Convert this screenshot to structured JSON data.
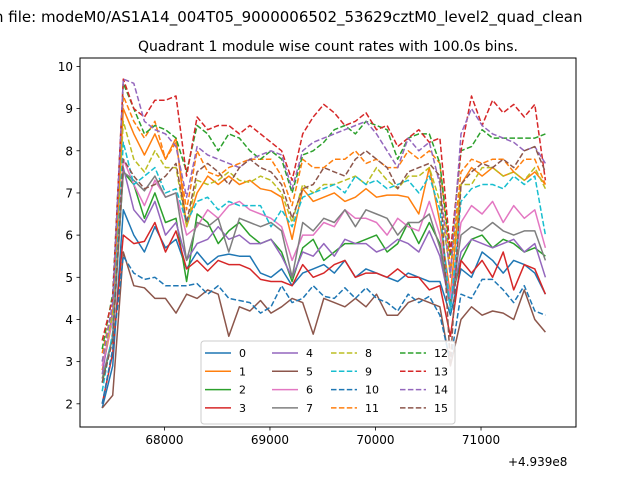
{
  "figure": {
    "suptitle": "n file: modeM0/AS1A14_004T05_9000006502_53629cztM0_level2_quad_clean",
    "x_offset_label": "+4.939e8"
  },
  "chart_data": {
    "type": "line",
    "title": "Quadrant 1 module wise count rates with 100.0s bins.",
    "xlabel": "",
    "ylabel": "",
    "xlim": [
      67200,
      71900
    ],
    "ylim": [
      1.45,
      10.2
    ],
    "x_ticks": [
      68000,
      69000,
      70000,
      71000
    ],
    "x_tick_labels": [
      "68000",
      "69000",
      "70000",
      "71000"
    ],
    "y_ticks": [
      2,
      3,
      4,
      5,
      6,
      7,
      8,
      9,
      10
    ],
    "y_tick_labels": [
      "2",
      "3",
      "4",
      "5",
      "6",
      "7",
      "8",
      "9",
      "10"
    ],
    "grid": false,
    "legend": {
      "placement": "lower center",
      "columns": 4
    },
    "x": [
      67410,
      67510,
      67610,
      67710,
      67810,
      67910,
      68010,
      68110,
      68210,
      68310,
      68410,
      68510,
      68610,
      68710,
      68810,
      68910,
      69010,
      69110,
      69210,
      69310,
      69410,
      69510,
      69610,
      69710,
      69810,
      69910,
      70010,
      70110,
      70210,
      70310,
      70410,
      70510,
      70610,
      70710,
      70810,
      70910,
      71010,
      71110,
      71210,
      71310,
      71410,
      71510,
      71610
    ],
    "series": [
      {
        "name": "0",
        "color": "#1f77b4",
        "dash": "solid",
        "values": [
          1.9,
          2.9,
          6.6,
          6.0,
          5.6,
          6.2,
          5.7,
          5.9,
          5.2,
          5.6,
          5.3,
          5.5,
          5.55,
          5.5,
          5.5,
          5.1,
          5.0,
          5.2,
          4.8,
          5.1,
          5.2,
          5.3,
          5.1,
          5.4,
          5.0,
          5.2,
          5.1,
          5.0,
          4.9,
          5.1,
          5.0,
          4.9,
          4.9,
          4.1,
          5.2,
          5.0,
          5.6,
          5.4,
          5.1,
          5.4,
          5.3,
          5.1,
          4.6
        ]
      },
      {
        "name": "1",
        "color": "#ff7f0e",
        "dash": "solid",
        "values": [
          2.8,
          4.0,
          9.0,
          8.4,
          7.9,
          8.4,
          7.8,
          8.3,
          6.2,
          7.0,
          7.4,
          7.2,
          7.4,
          7.2,
          7.3,
          7.1,
          7.05,
          6.9,
          5.9,
          7.1,
          6.8,
          6.9,
          7.0,
          6.8,
          6.9,
          7.1,
          6.9,
          6.95,
          6.95,
          6.9,
          6.5,
          7.6,
          6.3,
          4.6,
          7.2,
          7.6,
          7.4,
          7.6,
          7.4,
          7.5,
          7.3,
          7.5,
          7.2
        ]
      },
      {
        "name": "2",
        "color": "#2ca02c",
        "dash": "solid",
        "values": [
          2.5,
          3.6,
          7.5,
          7.2,
          6.4,
          7.0,
          6.3,
          6.4,
          4.9,
          6.5,
          6.3,
          5.8,
          6.1,
          6.3,
          6.0,
          5.8,
          5.9,
          5.6,
          4.9,
          5.7,
          5.9,
          5.4,
          5.6,
          5.8,
          5.8,
          5.9,
          6.0,
          5.6,
          5.8,
          6.3,
          5.8,
          6.3,
          5.8,
          4.4,
          5.4,
          5.9,
          6.0,
          5.7,
          5.9,
          5.8,
          5.6,
          5.7,
          5.5
        ]
      },
      {
        "name": "3",
        "color": "#d62728",
        "dash": "solid",
        "values": [
          2.0,
          3.2,
          6.0,
          5.8,
          5.85,
          6.3,
          5.6,
          6.1,
          5.2,
          5.4,
          5.15,
          5.4,
          5.3,
          5.3,
          5.2,
          4.95,
          4.9,
          4.9,
          4.8,
          5.3,
          5.0,
          5.1,
          5.3,
          5.4,
          5.0,
          5.1,
          5.1,
          5.0,
          5.2,
          5.0,
          5.0,
          4.7,
          4.8,
          3.6,
          5.4,
          5.1,
          5.4,
          5.0,
          5.6,
          4.7,
          5.3,
          5.2,
          4.6
        ]
      },
      {
        "name": "4",
        "color": "#9467bd",
        "dash": "solid",
        "values": [
          2.7,
          4.2,
          7.6,
          6.6,
          6.3,
          6.8,
          6.0,
          6.3,
          5.4,
          5.8,
          5.9,
          6.2,
          5.9,
          6.0,
          5.8,
          5.8,
          5.9,
          5.5,
          5.0,
          5.6,
          5.5,
          5.8,
          5.5,
          5.9,
          5.8,
          5.8,
          5.6,
          5.7,
          5.9,
          5.8,
          5.6,
          6.1,
          5.5,
          4.3,
          5.6,
          5.9,
          5.8,
          5.7,
          5.8,
          5.9,
          5.6,
          5.8,
          5.0
        ]
      },
      {
        "name": "5",
        "color": "#8c564b",
        "dash": "solid",
        "values": [
          1.9,
          2.2,
          5.6,
          4.8,
          4.75,
          4.5,
          4.5,
          4.15,
          4.6,
          4.5,
          4.7,
          4.6,
          3.6,
          4.3,
          4.2,
          4.45,
          4.15,
          4.3,
          4.5,
          4.4,
          3.65,
          4.5,
          4.4,
          4.3,
          4.5,
          4.3,
          4.6,
          4.1,
          4.1,
          4.4,
          4.5,
          4.4,
          4.3,
          2.9,
          4.0,
          4.3,
          4.1,
          4.2,
          4.15,
          4.0,
          4.7,
          4.0,
          3.7
        ]
      },
      {
        "name": "6",
        "color": "#e377c2",
        "dash": "solid",
        "values": [
          2.9,
          4.0,
          7.8,
          7.2,
          6.7,
          7.3,
          6.9,
          7.0,
          6.0,
          6.2,
          6.6,
          6.4,
          6.7,
          6.8,
          6.6,
          6.5,
          6.4,
          6.2,
          5.4,
          6.0,
          6.0,
          6.3,
          6.2,
          6.6,
          6.4,
          6.4,
          6.3,
          6.0,
          6.4,
          6.2,
          6.1,
          6.8,
          6.0,
          4.5,
          6.3,
          6.7,
          6.5,
          6.8,
          6.3,
          6.7,
          6.4,
          6.6,
          5.7
        ]
      },
      {
        "name": "7",
        "color": "#7f7f7f",
        "dash": "solid",
        "values": [
          2.6,
          3.6,
          7.5,
          7.3,
          7.05,
          7.4,
          6.9,
          7.0,
          5.4,
          6.3,
          6.2,
          6.4,
          5.6,
          6.4,
          6.3,
          6.2,
          6.3,
          6.1,
          5.0,
          6.3,
          6.1,
          6.4,
          6.3,
          6.6,
          6.2,
          6.6,
          6.5,
          6.4,
          6.0,
          6.3,
          6.3,
          6.5,
          5.7,
          4.3,
          6.0,
          6.2,
          6.1,
          6.3,
          6.1,
          6.0,
          6.1,
          6.1,
          5.4
        ]
      },
      {
        "name": "8",
        "color": "#bcbd22",
        "dash": "dashed",
        "values": [
          3.0,
          4.1,
          8.7,
          7.8,
          7.5,
          8.0,
          7.6,
          7.6,
          6.2,
          7.3,
          7.2,
          7.3,
          7.5,
          7.3,
          7.25,
          7.4,
          7.3,
          7.0,
          6.3,
          7.2,
          7.0,
          7.2,
          7.2,
          7.3,
          7.4,
          7.2,
          7.6,
          7.3,
          7.1,
          7.4,
          7.4,
          7.6,
          6.8,
          5.1,
          7.2,
          7.2,
          7.6,
          7.6,
          7.4,
          7.5,
          7.3,
          7.6,
          7.1
        ]
      },
      {
        "name": "9",
        "color": "#17becf",
        "dash": "dashed",
        "values": [
          2.3,
          3.7,
          8.2,
          7.2,
          7.4,
          7.6,
          7.0,
          7.1,
          6.3,
          6.8,
          6.9,
          6.6,
          6.8,
          6.7,
          6.7,
          6.7,
          6.2,
          6.6,
          6.2,
          6.9,
          7.0,
          7.1,
          7.2,
          7.0,
          7.4,
          7.2,
          7.3,
          7.1,
          7.2,
          7.3,
          7.0,
          7.4,
          6.6,
          4.2,
          6.8,
          7.1,
          7.2,
          7.2,
          7.1,
          7.4,
          7.2,
          7.4,
          6.0
        ]
      },
      {
        "name": "10",
        "color": "#1f77b4",
        "dash": "dashed",
        "values": [
          2.0,
          3.3,
          5.5,
          5.1,
          4.95,
          5.0,
          4.8,
          4.8,
          4.8,
          4.85,
          4.6,
          4.8,
          4.5,
          4.45,
          4.4,
          4.15,
          4.3,
          4.8,
          4.4,
          4.5,
          4.8,
          4.55,
          4.5,
          4.75,
          4.5,
          4.75,
          4.5,
          4.4,
          4.2,
          4.6,
          4.4,
          4.55,
          4.1,
          3.0,
          4.6,
          4.5,
          4.95,
          4.95,
          4.7,
          4.4,
          4.8,
          4.2,
          4.1
        ]
      },
      {
        "name": "11",
        "color": "#ff7f0e",
        "dash": "dashed",
        "values": [
          3.2,
          4.3,
          9.3,
          8.7,
          8.3,
          8.7,
          7.8,
          8.2,
          6.6,
          8.0,
          7.5,
          7.4,
          7.6,
          7.7,
          7.8,
          7.8,
          7.8,
          7.4,
          6.7,
          7.8,
          7.6,
          7.6,
          7.8,
          7.8,
          8.0,
          7.7,
          7.8,
          7.6,
          7.6,
          8.0,
          7.8,
          8.0,
          7.7,
          5.2,
          7.5,
          7.8,
          7.7,
          7.8,
          7.8,
          7.5,
          7.8,
          7.8,
          7.2
        ]
      },
      {
        "name": "12",
        "color": "#2ca02c",
        "dash": "dashed",
        "values": [
          3.3,
          4.6,
          9.6,
          9.0,
          8.4,
          8.6,
          8.5,
          8.3,
          7.5,
          8.6,
          8.4,
          8.0,
          8.4,
          8.3,
          8.0,
          7.8,
          8.0,
          7.8,
          7.0,
          7.9,
          8.0,
          8.2,
          8.5,
          8.6,
          8.4,
          8.7,
          8.6,
          8.5,
          7.8,
          8.3,
          8.4,
          8.4,
          7.7,
          5.5,
          8.0,
          8.1,
          8.5,
          8.3,
          8.3,
          8.3,
          8.3,
          8.3,
          8.4
        ]
      },
      {
        "name": "13",
        "color": "#d62728",
        "dash": "dashed",
        "values": [
          3.5,
          4.5,
          9.7,
          9.0,
          8.8,
          9.2,
          9.2,
          9.3,
          7.4,
          8.8,
          8.5,
          8.6,
          8.6,
          8.4,
          8.6,
          8.4,
          8.2,
          8.0,
          7.3,
          8.4,
          8.8,
          9.1,
          8.9,
          8.6,
          8.7,
          8.9,
          8.5,
          8.6,
          8.1,
          8.3,
          8.5,
          8.2,
          8.3,
          5.6,
          8.0,
          9.3,
          8.6,
          9.2,
          8.9,
          9.1,
          8.8,
          9.1,
          7.3
        ]
      },
      {
        "name": "14",
        "color": "#9467bd",
        "dash": "dashed",
        "values": [
          3.0,
          4.4,
          9.7,
          9.6,
          8.7,
          8.5,
          8.4,
          8.1,
          6.9,
          8.1,
          7.9,
          7.8,
          7.7,
          7.6,
          7.8,
          7.9,
          8.0,
          7.9,
          7.1,
          8.0,
          8.2,
          8.3,
          8.4,
          8.5,
          8.6,
          8.7,
          8.4,
          8.0,
          7.6,
          8.3,
          8.0,
          8.2,
          7.2,
          5.0,
          8.4,
          9.0,
          8.6,
          8.4,
          8.3,
          8.2,
          8.0,
          8.1,
          7.7
        ]
      },
      {
        "name": "15",
        "color": "#8c564b",
        "dash": "dashed",
        "values": [
          2.5,
          3.5,
          7.8,
          7.4,
          7.1,
          7.2,
          7.4,
          7.7,
          6.3,
          7.5,
          7.7,
          7.5,
          7.2,
          7.6,
          7.8,
          7.6,
          7.5,
          7.2,
          6.4,
          7.1,
          7.2,
          7.6,
          7.5,
          7.4,
          7.8,
          8.0,
          7.8,
          7.6,
          7.1,
          7.5,
          7.6,
          7.7,
          7.4,
          2.9,
          7.2,
          7.5,
          7.7,
          7.6,
          7.8,
          7.6,
          8.0,
          8.1,
          7.5
        ]
      }
    ]
  }
}
